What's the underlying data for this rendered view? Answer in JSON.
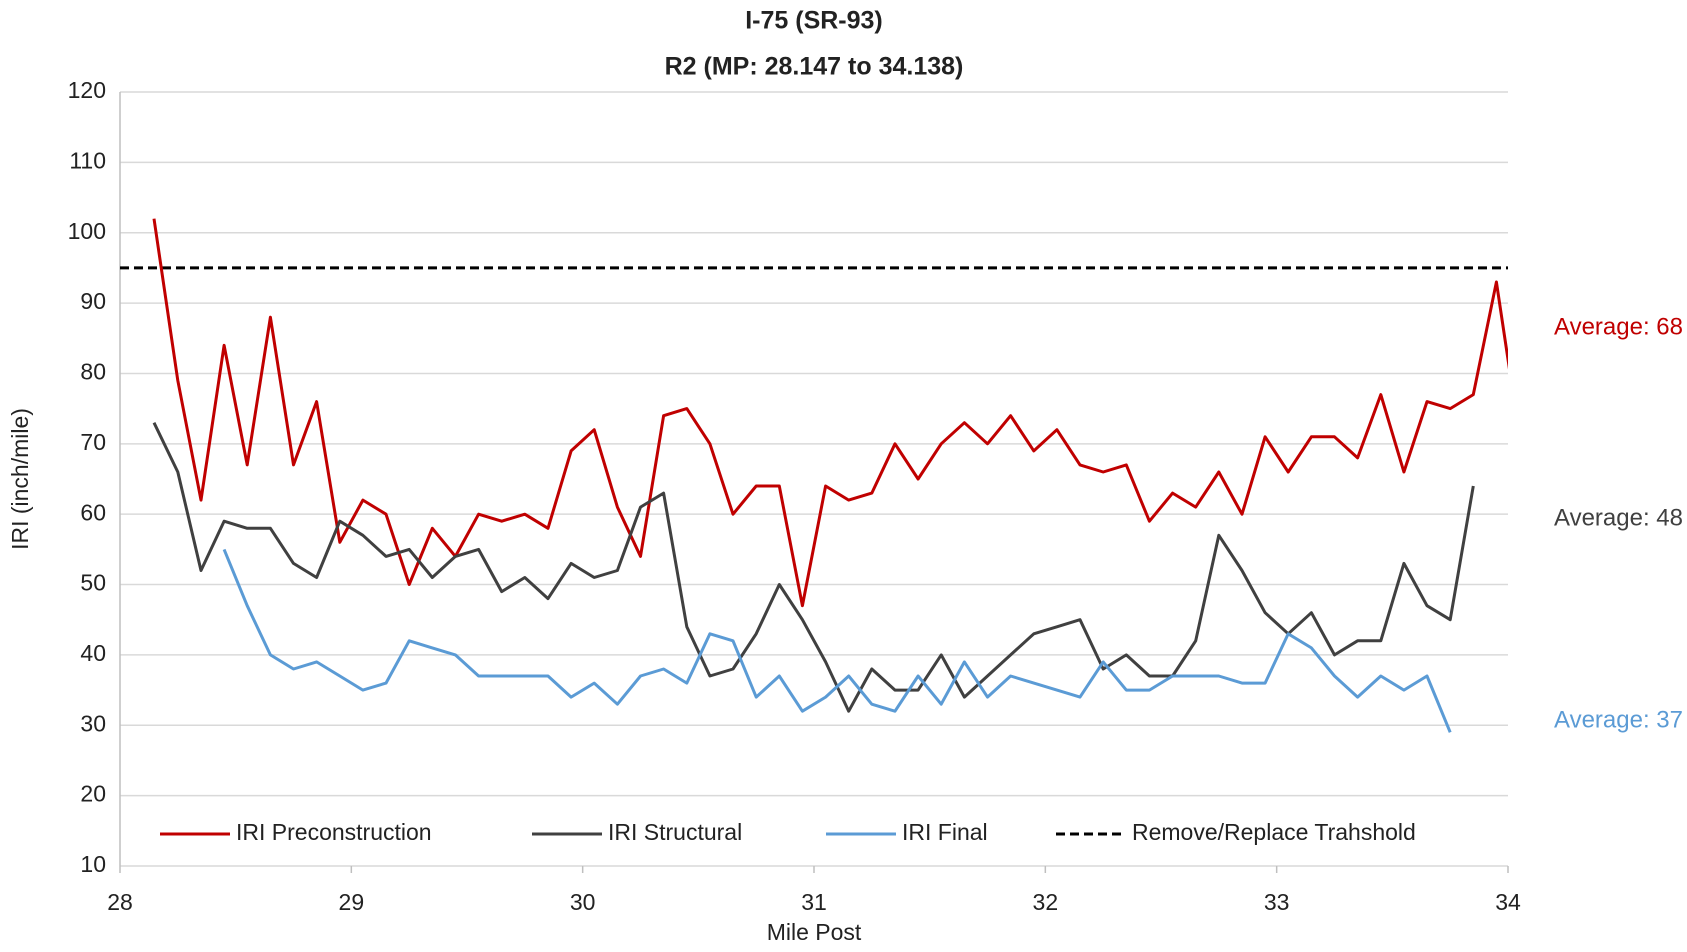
{
  "chart_data": {
    "type": "line",
    "title": [
      "I-75 (SR-93)",
      "R2 (MP: 28.147 to 34.138)"
    ],
    "x_label": "Mile Post",
    "y_label": "IRI (inch/mile)",
    "xlim": [
      28,
      34
    ],
    "xticks": [
      28,
      29,
      30,
      31,
      32,
      33,
      34
    ],
    "ylim": [
      10,
      120
    ],
    "yticks": [
      10,
      20,
      30,
      40,
      50,
      60,
      70,
      80,
      90,
      100,
      110,
      120
    ],
    "grid": true,
    "legend": "bottom",
    "x": [
      28.147,
      28.25,
      28.35,
      28.45,
      28.55,
      28.65,
      28.75,
      28.85,
      28.95,
      29.05,
      29.15,
      29.25,
      29.35,
      29.45,
      29.55,
      29.65,
      29.75,
      29.85,
      29.95,
      30.05,
      30.15,
      30.25,
      30.35,
      30.45,
      30.55,
      30.65,
      30.75,
      30.85,
      30.95,
      31.05,
      31.15,
      31.25,
      31.35,
      31.45,
      31.55,
      31.65,
      31.75,
      31.85,
      31.95,
      32.05,
      32.15,
      32.25,
      32.35,
      32.45,
      32.55,
      32.65,
      32.75,
      32.85,
      32.95,
      33.05,
      33.15,
      33.25,
      33.35,
      33.45,
      33.55,
      33.65,
      33.75,
      33.85,
      33.95,
      34.05
    ],
    "series": [
      {
        "name": "IRI Preconstruction",
        "color": "#c00000",
        "values": [
          102,
          79,
          62,
          84,
          67,
          88,
          67,
          76,
          56,
          62,
          60,
          50,
          58,
          54,
          60,
          59,
          60,
          58,
          69,
          72,
          61,
          54,
          74,
          75,
          70,
          60,
          64,
          64,
          47,
          64,
          62,
          63,
          70,
          65,
          70,
          73,
          70,
          74,
          69,
          72,
          67,
          66,
          67,
          59,
          63,
          61,
          66,
          60,
          71,
          66,
          71,
          71,
          68,
          77,
          66,
          76,
          75,
          77,
          93,
          71
        ]
      },
      {
        "name": "IRI Structural",
        "color": "#404040",
        "values": [
          73,
          66,
          52,
          59,
          58,
          58,
          53,
          51,
          59,
          57,
          54,
          55,
          51,
          54,
          55,
          49,
          51,
          48,
          53,
          51,
          52,
          61,
          63,
          44,
          37,
          38,
          43,
          50,
          45,
          39,
          32,
          38,
          35,
          35,
          40,
          34,
          37,
          40,
          43,
          44,
          45,
          38,
          40,
          37,
          37,
          42,
          57,
          52,
          46,
          43,
          46,
          40,
          42,
          42,
          53,
          47,
          45,
          64,
          null,
          null
        ]
      },
      {
        "name": "IRI Final",
        "color": "#5b9bd5",
        "values": [
          null,
          null,
          null,
          55,
          47,
          40,
          38,
          39,
          37,
          35,
          36,
          42,
          41,
          40,
          37,
          37,
          37,
          37,
          34,
          36,
          33,
          37,
          38,
          36,
          43,
          42,
          34,
          37,
          32,
          34,
          37,
          33,
          32,
          37,
          33,
          39,
          34,
          37,
          36,
          35,
          34,
          39,
          35,
          35,
          37,
          37,
          37,
          36,
          36,
          43,
          41,
          37,
          34,
          37,
          35,
          37,
          29,
          null,
          null,
          null
        ]
      }
    ],
    "reference_lines": [
      {
        "name": "Remove/Replace Trahshold",
        "value": 95,
        "color": "#000000",
        "dashed": true
      }
    ],
    "annotations": [
      {
        "text": "Average: 68",
        "color": "#c00000"
      },
      {
        "text": "Average: 48",
        "color": "#404040"
      },
      {
        "text": "Average: 37",
        "color": "#5b9bd5"
      }
    ]
  }
}
